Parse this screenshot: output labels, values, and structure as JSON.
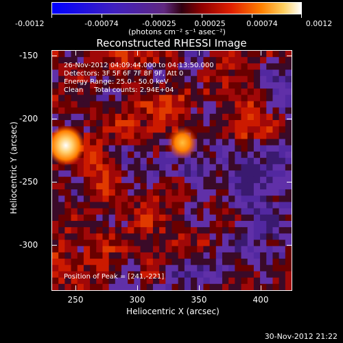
{
  "colorbar": {
    "ticks": [
      "-0.0012",
      "-0.00074",
      "-0.00025",
      "0.00025",
      "0.00074",
      "0.0012"
    ],
    "unit_label": "(photons cm⁻² s⁻¹ asec⁻²)"
  },
  "title": "Reconstructed RHESSI Image",
  "info": {
    "time_range": "26-Nov-2012 04:09:44.000 to 04:13:50.000",
    "detectors": "Detectors: 3F 5F 6F 7F 8F 9F, Att 0",
    "energy_range": "Energy Range: 25.0 - 50.0 keV",
    "method": "Clean     Total counts: 2.94E+04"
  },
  "peak_text": "Position of Peak = [241,-221]",
  "axes": {
    "x_label": "Heliocentric X (arcsec)",
    "y_label": "Heliocentric Y (arcsec)",
    "x_ticks": [
      "250",
      "300",
      "350",
      "400"
    ],
    "y_ticks": [
      "-150",
      "-200",
      "-250",
      "-300"
    ]
  },
  "timestamp": "30-Nov-2012 21:22",
  "colors": {
    "blue": "#0000ff",
    "purple": "#5a2aa0",
    "red": "#c00000",
    "orange": "#ff8000",
    "white": "#ffffff"
  }
}
